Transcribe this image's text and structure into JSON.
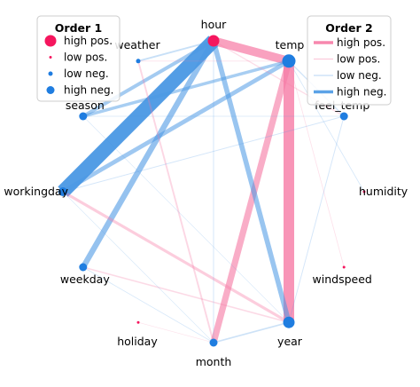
{
  "chart_data": {
    "type": "network",
    "colors": {
      "positive": "#f5165e",
      "negative": "#1f7de0",
      "positive_edge": "#f67ba5",
      "negative_edge": "#4a98e4"
    },
    "nodes": [
      {
        "id": "hour",
        "label": "hour",
        "order1": "high pos."
      },
      {
        "id": "temp",
        "label": "temp",
        "order1": "high neg."
      },
      {
        "id": "feel_temp",
        "label": "feel_temp",
        "order1": "high neg."
      },
      {
        "id": "humidity",
        "label": "humidity",
        "order1": "low pos."
      },
      {
        "id": "windspeed",
        "label": "windspeed",
        "order1": "low pos."
      },
      {
        "id": "year",
        "label": "year",
        "order1": "high neg."
      },
      {
        "id": "month",
        "label": "month",
        "order1": "high neg."
      },
      {
        "id": "holiday",
        "label": "holiday",
        "order1": "low pos."
      },
      {
        "id": "weekday",
        "label": "weekday",
        "order1": "high neg."
      },
      {
        "id": "workingday",
        "label": "workingday",
        "order1": "high neg."
      },
      {
        "id": "season",
        "label": "season",
        "order1": "high neg."
      },
      {
        "id": "weather",
        "label": "weather",
        "order1": "low neg."
      }
    ],
    "edges": [
      {
        "source": "hour",
        "target": "workingday",
        "order2": "high neg.",
        "strength": 1.0
      },
      {
        "source": "temp",
        "target": "year",
        "order2": "high pos.",
        "strength": 0.75
      },
      {
        "source": "hour",
        "target": "temp",
        "order2": "high pos.",
        "strength": 0.6
      },
      {
        "source": "temp",
        "target": "month",
        "order2": "high pos.",
        "strength": 0.45
      },
      {
        "source": "hour",
        "target": "weekday",
        "order2": "high neg.",
        "strength": 0.4
      },
      {
        "source": "hour",
        "target": "year",
        "order2": "high neg.",
        "strength": 0.35
      },
      {
        "source": "temp",
        "target": "workingday",
        "order2": "high neg.",
        "strength": 0.3
      },
      {
        "source": "hour",
        "target": "season",
        "order2": "high neg.",
        "strength": 0.25
      },
      {
        "source": "temp",
        "target": "season",
        "order2": "high neg.",
        "strength": 0.22
      },
      {
        "source": "workingday",
        "target": "year",
        "order2": "low pos.",
        "strength": 0.2
      },
      {
        "source": "hour",
        "target": "weather",
        "order2": "low neg.",
        "strength": 0.12
      },
      {
        "source": "weather",
        "target": "month",
        "order2": "low pos.",
        "strength": 0.12
      },
      {
        "source": "weekday",
        "target": "year",
        "order2": "low pos.",
        "strength": 0.1
      },
      {
        "source": "month",
        "target": "year",
        "order2": "low neg.",
        "strength": 0.1
      },
      {
        "source": "hour",
        "target": "feel_temp",
        "order2": "low pos.",
        "strength": 0.08
      },
      {
        "source": "temp",
        "target": "feel_temp",
        "order2": "low neg.",
        "strength": 0.08
      },
      {
        "source": "hour",
        "target": "month",
        "order2": "low neg.",
        "strength": 0.06
      },
      {
        "source": "workingday",
        "target": "feel_temp",
        "order2": "low neg.",
        "strength": 0.06
      },
      {
        "source": "feel_temp",
        "target": "year",
        "order2": "low neg.",
        "strength": 0.06
      },
      {
        "source": "temp",
        "target": "windspeed",
        "order2": "low pos.",
        "strength": 0.05
      },
      {
        "source": "temp",
        "target": "humidity",
        "order2": "low neg.",
        "strength": 0.05
      },
      {
        "source": "weekday",
        "target": "month",
        "order2": "low neg.",
        "strength": 0.05
      },
      {
        "source": "season",
        "target": "feel_temp",
        "order2": "low neg.",
        "strength": 0.05
      },
      {
        "source": "weather",
        "target": "temp",
        "order2": "low pos.",
        "strength": 0.05
      },
      {
        "source": "holiday",
        "target": "month",
        "order2": "low pos.",
        "strength": 0.04
      },
      {
        "source": "workingday",
        "target": "month",
        "order2": "low neg.",
        "strength": 0.04
      },
      {
        "source": "season",
        "target": "year",
        "order2": "low neg.",
        "strength": 0.04
      }
    ],
    "legend_order1": {
      "title": "Order 1",
      "position": "top-left",
      "items": [
        "high pos.",
        "low pos.",
        "low neg.",
        "high neg."
      ]
    },
    "legend_order2": {
      "title": "Order 2",
      "position": "top-right",
      "items": [
        "high pos.",
        "low pos.",
        "low neg.",
        "high neg."
      ]
    }
  }
}
